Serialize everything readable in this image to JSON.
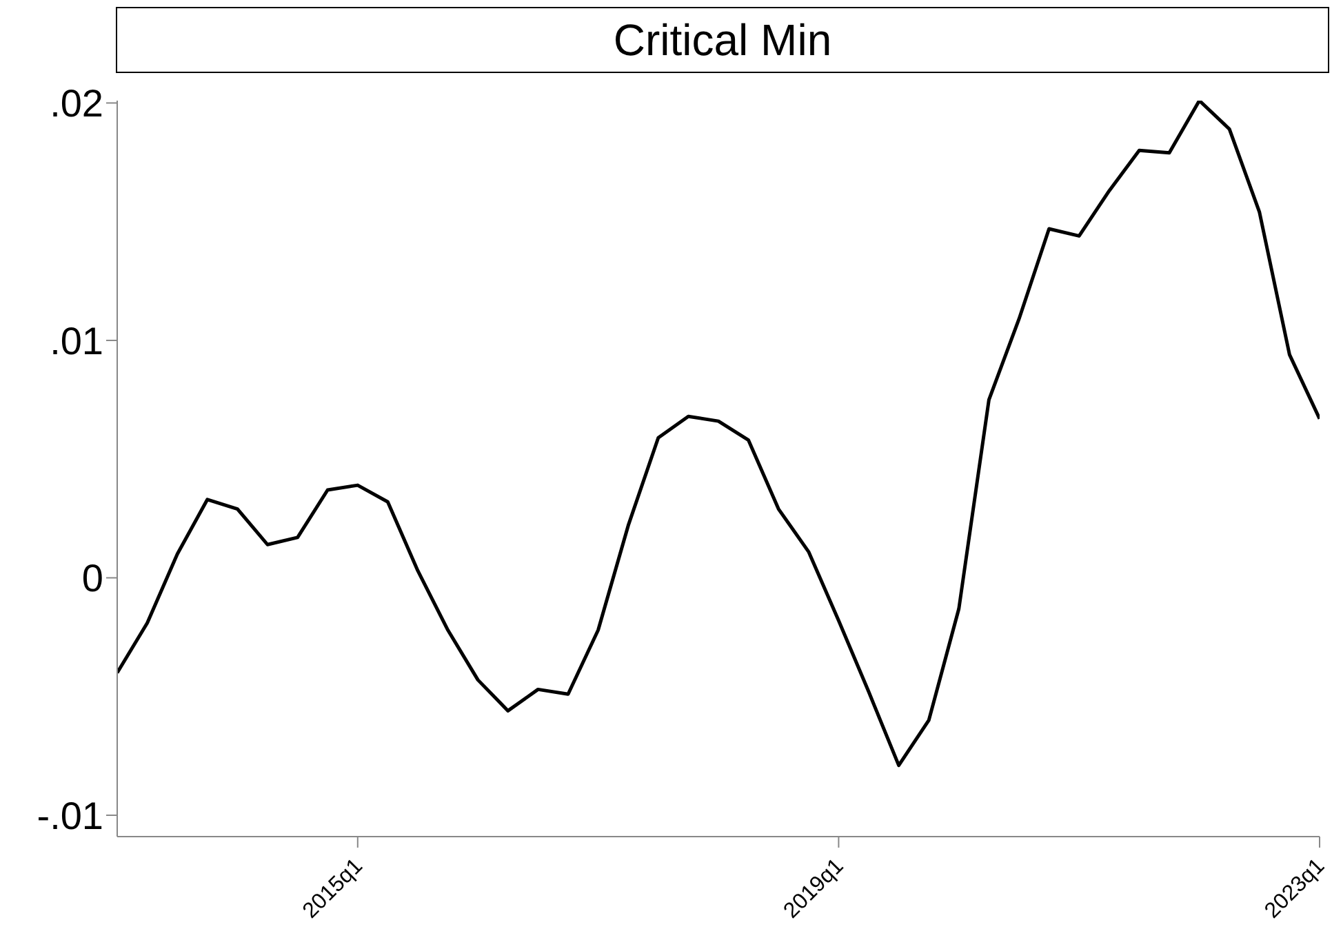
{
  "chart_data": {
    "type": "line",
    "title": "Critical Min",
    "x": [
      "2013-01",
      "2013-04",
      "2013-07",
      "2013-10",
      "2014-01",
      "2014-04",
      "2014-07",
      "2014-10",
      "2015-01",
      "2015-04",
      "2015-07",
      "2015-10",
      "2016-01",
      "2016-04",
      "2016-07",
      "2016-10",
      "2017-01",
      "2017-04",
      "2017-07",
      "2017-10",
      "2018-01",
      "2018-04",
      "2018-07",
      "2018-10",
      "2019-01",
      "2019-04",
      "2019-07",
      "2019-10",
      "2020-01",
      "2020-04",
      "2020-07",
      "2020-10",
      "2021-01",
      "2021-04",
      "2021-07",
      "2021-10",
      "2022-01",
      "2022-04",
      "2022-07",
      "2022-10",
      "2023-01"
    ],
    "series": [
      {
        "color": "#000000",
        "values": [
          -0.004,
          -0.0019,
          0.001,
          0.0033,
          0.0029,
          0.0014,
          0.0017,
          0.0037,
          0.0039,
          0.0032,
          0.0003,
          -0.0022,
          -0.0043,
          -0.0056,
          -0.0047,
          -0.0049,
          -0.0022,
          0.0022,
          0.0059,
          0.0068,
          0.0066,
          0.0058,
          0.0029,
          0.0011,
          -0.0018,
          -0.0048,
          -0.0079,
          -0.006,
          -0.0013,
          0.0075,
          0.0109,
          0.0147,
          0.0144,
          0.0163,
          0.018,
          0.0179,
          0.0201,
          0.0189,
          0.0154,
          0.0094,
          0.0067
        ]
      }
    ],
    "xlim": [
      "2013-01",
      "2023-01"
    ],
    "xticks": [
      {
        "value": "2015-01",
        "label": "2015q1"
      },
      {
        "value": "2019-01",
        "label": "2019q1"
      },
      {
        "value": "2023-01",
        "label": "2023q1"
      }
    ],
    "ylim": [
      -0.0109,
      0.0201
    ],
    "yticks": [
      {
        "value": -0.01,
        "label": "-.01"
      },
      {
        "value": 0,
        "label": "0"
      },
      {
        "value": 0.01,
        "label": ".01"
      },
      {
        "value": 0.02,
        "label": ".02"
      }
    ],
    "grid": false,
    "legend": false,
    "marker": "none",
    "line_style": "solid"
  }
}
